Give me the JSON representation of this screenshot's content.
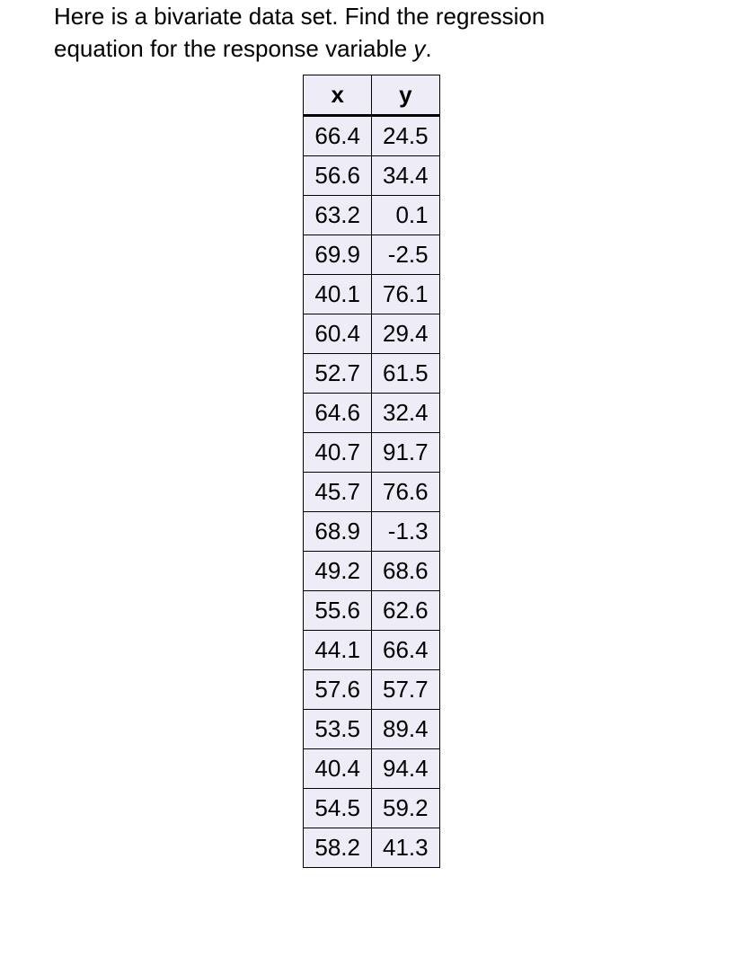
{
  "question": {
    "line1": "Here is a bivariate data set. Find the regression",
    "line2_prefix": "equation for the response variable ",
    "line2_var": "y",
    "line2_suffix": "."
  },
  "table": {
    "background_color": "#eeecf6",
    "border_color": "#000000",
    "font_size": 26,
    "columns": [
      "x",
      "y"
    ],
    "rows": [
      [
        "66.4",
        "24.5"
      ],
      [
        "56.6",
        "34.4"
      ],
      [
        "63.2",
        "0.1"
      ],
      [
        "69.9",
        "-2.5"
      ],
      [
        "40.1",
        "76.1"
      ],
      [
        "60.4",
        "29.4"
      ],
      [
        "52.7",
        "61.5"
      ],
      [
        "64.6",
        "32.4"
      ],
      [
        "40.7",
        "91.7"
      ],
      [
        "45.7",
        "76.6"
      ],
      [
        "68.9",
        "-1.3"
      ],
      [
        "49.2",
        "68.6"
      ],
      [
        "55.6",
        "62.6"
      ],
      [
        "44.1",
        "66.4"
      ],
      [
        "57.6",
        "57.7"
      ],
      [
        "53.5",
        "89.4"
      ],
      [
        "40.4",
        "94.4"
      ],
      [
        "54.5",
        "59.2"
      ],
      [
        "58.2",
        "41.3"
      ]
    ]
  }
}
